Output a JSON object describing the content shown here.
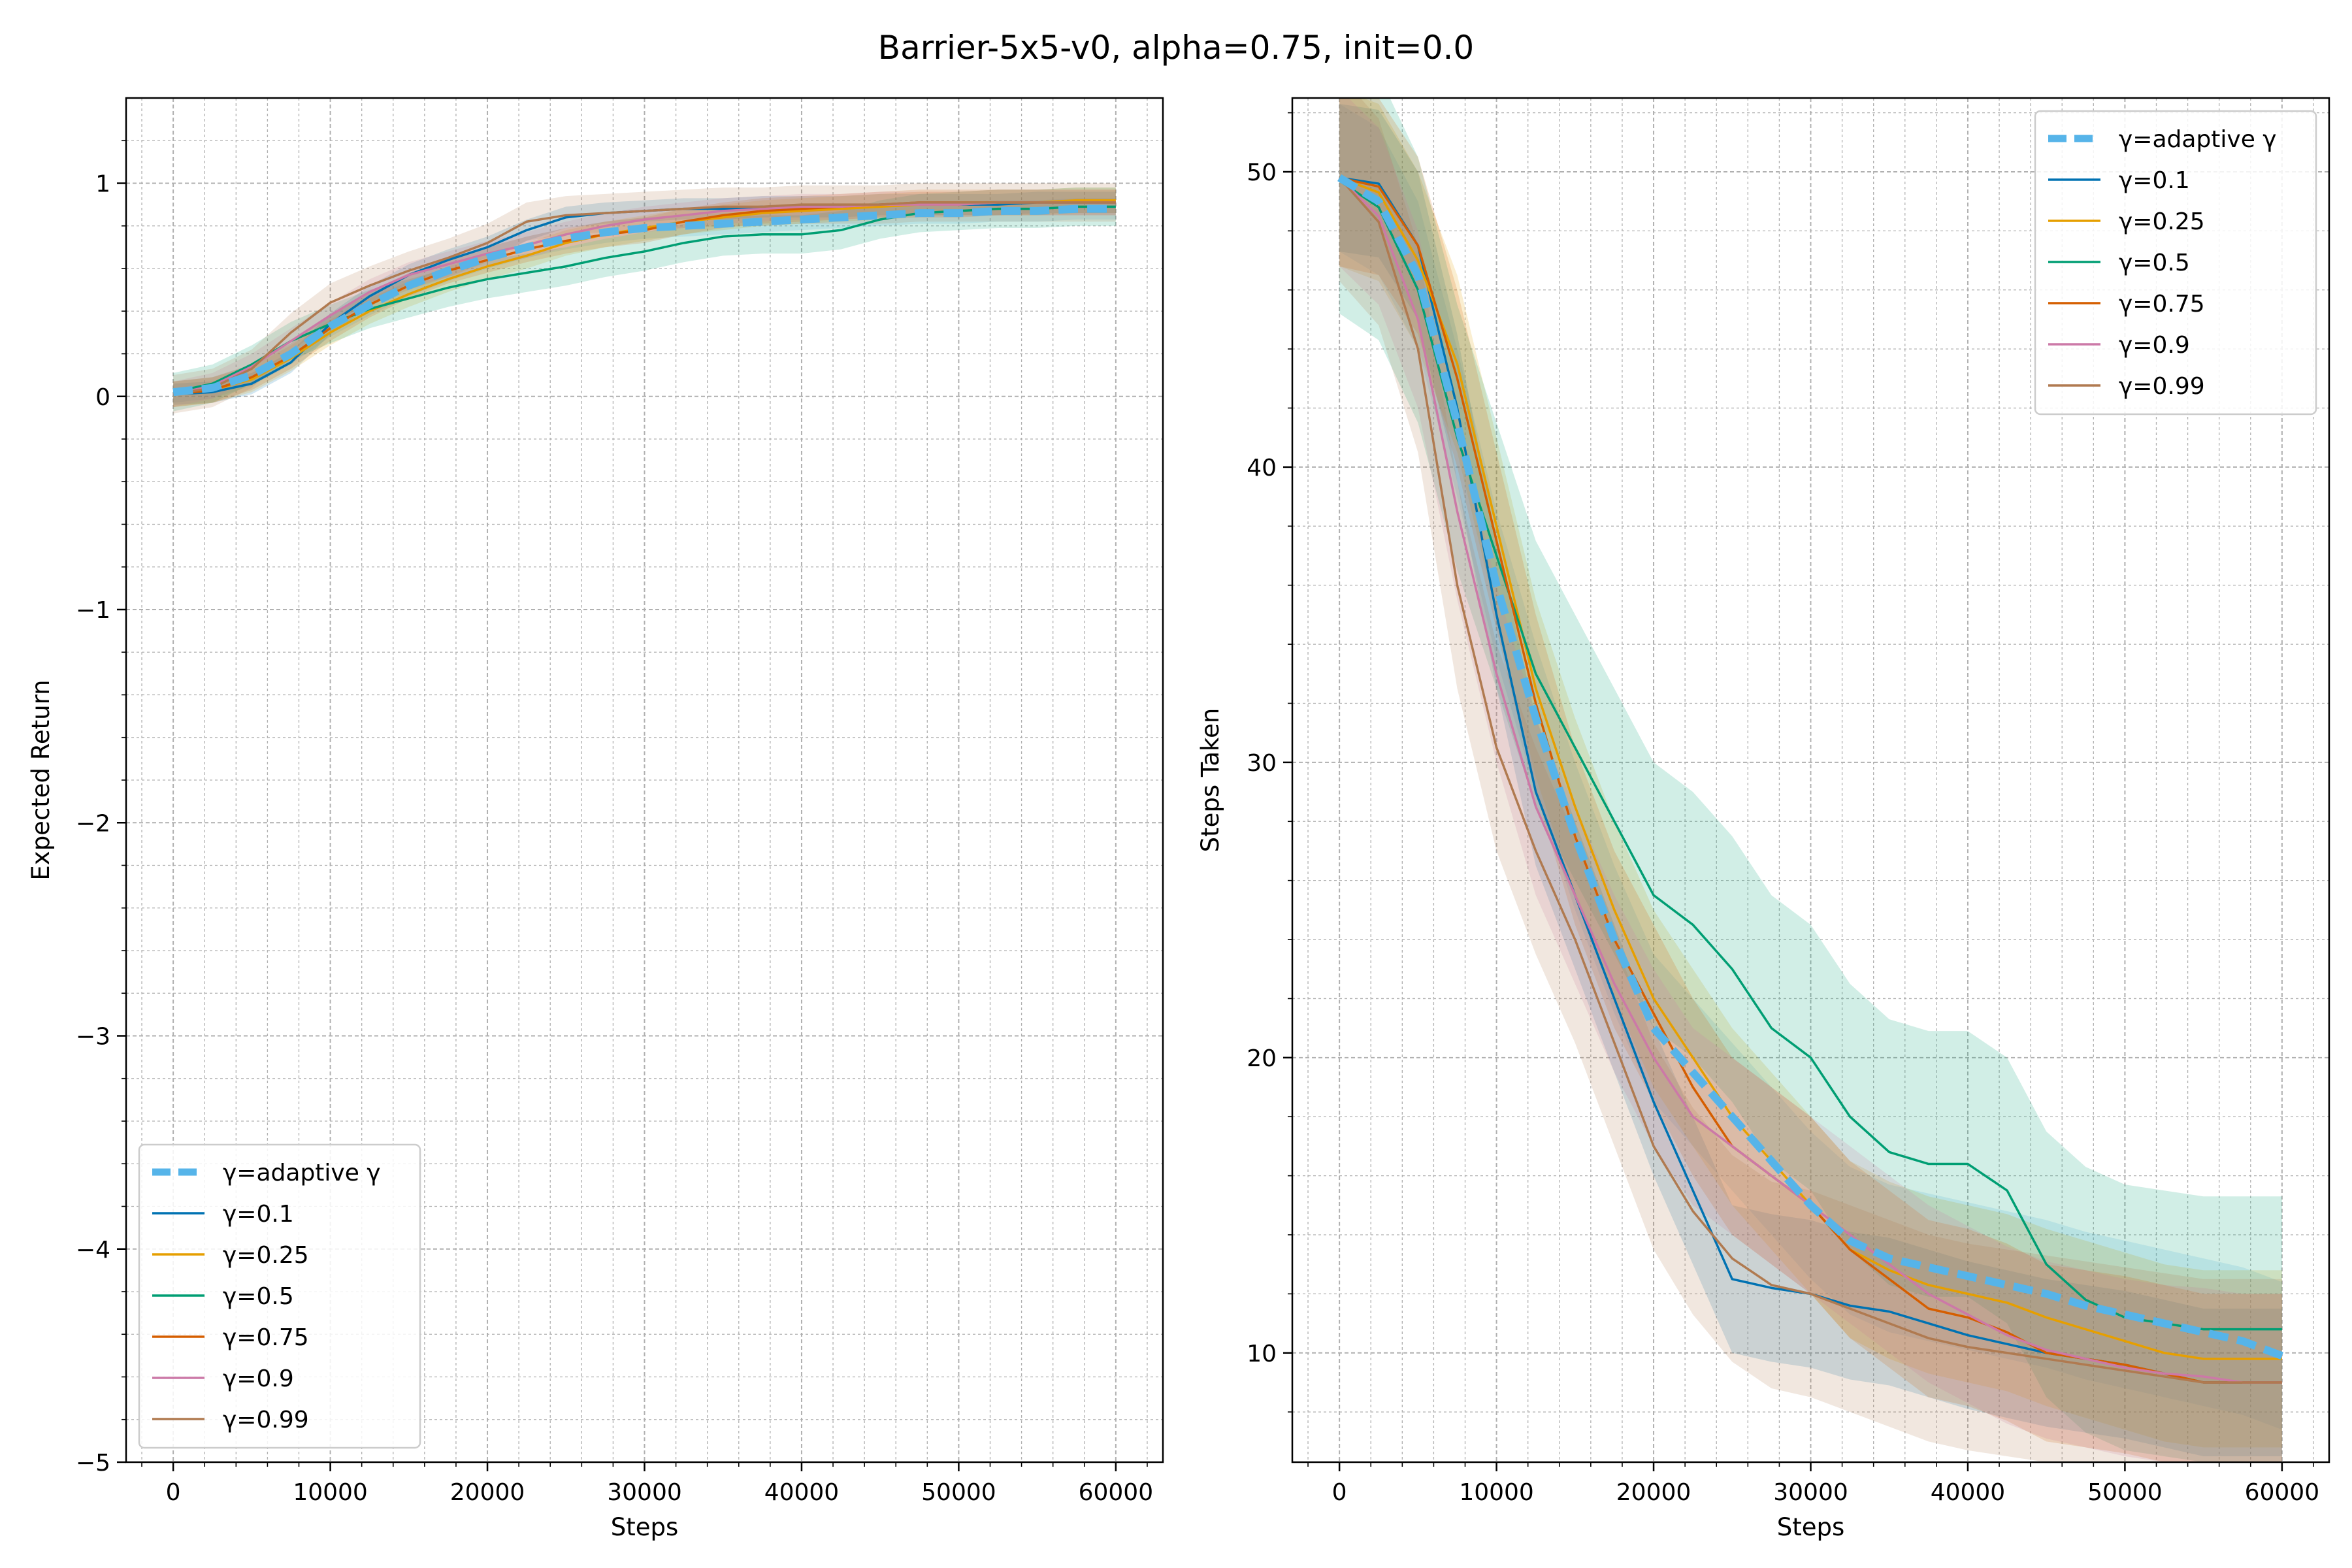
{
  "figure_title": "Barrier-5x5-v0, alpha=0.75, init=0.0",
  "colors": {
    "adaptive": "#56b4e9",
    "g01": "#0072b2",
    "g025": "#e69f00",
    "g05": "#009e73",
    "g075": "#d55e00",
    "g09": "#cc79a7",
    "g099": "#b07a50"
  },
  "chart_data": [
    {
      "type": "line",
      "xlabel": "Steps",
      "ylabel": "Expected Return",
      "xlim": [
        -3000,
        63000
      ],
      "ylim": [
        -5,
        1.4
      ],
      "xticks": [
        0,
        10000,
        20000,
        30000,
        40000,
        50000,
        60000
      ],
      "yticks": [
        -5,
        -4,
        -3,
        -2,
        -1,
        0,
        1
      ],
      "ytick_labels": [
        "−5",
        "−4",
        "−3",
        "−2",
        "−1",
        "0",
        "1"
      ],
      "grid": true,
      "legend_position": "lower-left",
      "x": [
        0,
        2500,
        5000,
        7500,
        10000,
        12500,
        15000,
        17500,
        20000,
        22500,
        25000,
        27500,
        30000,
        32500,
        35000,
        37500,
        40000,
        42500,
        45000,
        47500,
        50000,
        52500,
        55000,
        57500,
        60000
      ],
      "series": [
        {
          "name": "γ=adaptive γ",
          "key": "adaptive",
          "dashed": true,
          "width": 12,
          "values": [
            0.02,
            0.04,
            0.1,
            0.2,
            0.33,
            0.43,
            0.52,
            0.59,
            0.65,
            0.7,
            0.74,
            0.77,
            0.79,
            0.8,
            0.81,
            0.82,
            0.83,
            0.84,
            0.85,
            0.86,
            0.86,
            0.87,
            0.87,
            0.88,
            0.88
          ],
          "band": 0.05
        },
        {
          "name": "γ=0.1",
          "key": "g01",
          "width": 3.5,
          "values": [
            0.01,
            0.02,
            0.06,
            0.16,
            0.34,
            0.47,
            0.57,
            0.64,
            0.7,
            0.78,
            0.84,
            0.86,
            0.87,
            0.88,
            0.88,
            0.89,
            0.89,
            0.89,
            0.9,
            0.9,
            0.9,
            0.9,
            0.91,
            0.91,
            0.91
          ],
          "band": 0.05
        },
        {
          "name": "γ=0.25",
          "key": "g025",
          "width": 3.5,
          "values": [
            0.01,
            0.03,
            0.08,
            0.18,
            0.3,
            0.4,
            0.48,
            0.55,
            0.61,
            0.66,
            0.72,
            0.76,
            0.79,
            0.82,
            0.84,
            0.86,
            0.87,
            0.88,
            0.89,
            0.9,
            0.9,
            0.91,
            0.91,
            0.92,
            0.92
          ],
          "band": 0.06
        },
        {
          "name": "γ=0.5",
          "key": "g05",
          "width": 3.5,
          "values": [
            0.02,
            0.06,
            0.15,
            0.26,
            0.34,
            0.41,
            0.46,
            0.51,
            0.55,
            0.58,
            0.61,
            0.65,
            0.68,
            0.72,
            0.75,
            0.76,
            0.76,
            0.78,
            0.83,
            0.86,
            0.87,
            0.88,
            0.88,
            0.89,
            0.89
          ],
          "band": 0.09
        },
        {
          "name": "γ=0.75",
          "key": "g075",
          "width": 3.5,
          "values": [
            0.01,
            0.03,
            0.09,
            0.19,
            0.32,
            0.43,
            0.52,
            0.59,
            0.64,
            0.69,
            0.73,
            0.76,
            0.78,
            0.82,
            0.85,
            0.87,
            0.88,
            0.89,
            0.9,
            0.91,
            0.91,
            0.91,
            0.91,
            0.91,
            0.91
          ],
          "band": 0.06
        },
        {
          "name": "γ=0.9",
          "key": "g09",
          "width": 3.5,
          "values": [
            0.01,
            0.05,
            0.14,
            0.26,
            0.38,
            0.49,
            0.57,
            0.62,
            0.67,
            0.71,
            0.76,
            0.8,
            0.83,
            0.85,
            0.87,
            0.88,
            0.89,
            0.89,
            0.9,
            0.9,
            0.9,
            0.91,
            0.91,
            0.91,
            0.91
          ],
          "band": 0.06
        },
        {
          "name": "γ=0.99",
          "key": "g099",
          "width": 3.5,
          "values": [
            0.01,
            0.04,
            0.13,
            0.3,
            0.44,
            0.52,
            0.59,
            0.65,
            0.72,
            0.82,
            0.85,
            0.86,
            0.87,
            0.88,
            0.89,
            0.89,
            0.9,
            0.9,
            0.9,
            0.91,
            0.91,
            0.91,
            0.91,
            0.91,
            0.91
          ],
          "band": 0.09
        }
      ]
    },
    {
      "type": "line",
      "xlabel": "Steps",
      "ylabel": "Steps Taken",
      "xlim": [
        -3000,
        63000
      ],
      "ylim": [
        6.3,
        52.5
      ],
      "xticks": [
        0,
        10000,
        20000,
        30000,
        40000,
        50000,
        60000
      ],
      "yticks": [
        10,
        20,
        30,
        40,
        50
      ],
      "ytick_labels": [
        "10",
        "20",
        "30",
        "40",
        "50"
      ],
      "grid": true,
      "legend_position": "top-right",
      "x": [
        0,
        2500,
        5000,
        7500,
        10000,
        12500,
        15000,
        17500,
        20000,
        22500,
        25000,
        27500,
        30000,
        32500,
        35000,
        37500,
        40000,
        42500,
        45000,
        47500,
        50000,
        52500,
        55000,
        57500,
        60000
      ],
      "series": [
        {
          "name": "γ=adaptive γ",
          "key": "adaptive",
          "dashed": true,
          "width": 12,
          "values": [
            49.8,
            49.0,
            46.5,
            41.5,
            36.0,
            31.5,
            27.5,
            24.0,
            21.0,
            19.5,
            18.0,
            16.5,
            15.0,
            13.8,
            13.2,
            12.9,
            12.6,
            12.3,
            12.0,
            11.6,
            11.3,
            11.0,
            10.7,
            10.4,
            9.9
          ],
          "band": 2.5
        },
        {
          "name": "γ=0.1",
          "key": "g01",
          "width": 3.5,
          "values": [
            49.8,
            49.6,
            47.5,
            42.0,
            35.0,
            29.0,
            25.5,
            22.0,
            18.5,
            15.5,
            12.5,
            12.2,
            12.0,
            11.6,
            11.4,
            11.0,
            10.6,
            10.3,
            10.0,
            9.8,
            9.6,
            9.3,
            9.0,
            9.0,
            9.0
          ],
          "band": 2.5
        },
        {
          "name": "γ=0.25",
          "key": "g025",
          "width": 3.5,
          "values": [
            49.8,
            49.3,
            47.0,
            43.5,
            38.0,
            32.5,
            28.5,
            25.0,
            22.0,
            20.0,
            18.0,
            16.5,
            15.0,
            13.5,
            12.8,
            12.3,
            12.0,
            11.7,
            11.2,
            10.8,
            10.4,
            10.0,
            9.8,
            9.8,
            9.8
          ],
          "band": 3.0
        },
        {
          "name": "γ=0.5",
          "key": "g05",
          "width": 3.5,
          "values": [
            49.7,
            48.8,
            46.0,
            41.0,
            37.0,
            33.0,
            30.5,
            28.0,
            25.5,
            24.5,
            23.0,
            21.0,
            20.0,
            18.0,
            16.8,
            16.4,
            16.4,
            15.5,
            13.0,
            11.8,
            11.2,
            11.0,
            10.8,
            10.8,
            10.8
          ],
          "band": 4.5
        },
        {
          "name": "γ=0.75",
          "key": "g075",
          "width": 3.5,
          "values": [
            49.8,
            49.5,
            47.5,
            43.0,
            37.5,
            32.0,
            27.5,
            24.0,
            21.5,
            19.0,
            17.0,
            16.0,
            15.0,
            13.5,
            12.5,
            11.5,
            11.2,
            10.7,
            10.0,
            9.8,
            9.6,
            9.3,
            9.0,
            9.0,
            9.0
          ],
          "band": 3.0
        },
        {
          "name": "γ=0.9",
          "key": "g09",
          "width": 3.5,
          "values": [
            49.8,
            48.5,
            45.0,
            38.5,
            33.0,
            28.5,
            25.5,
            22.5,
            20.0,
            18.0,
            17.0,
            16.0,
            15.0,
            14.0,
            13.0,
            12.0,
            11.3,
            10.6,
            10.1,
            9.8,
            9.5,
            9.3,
            9.2,
            9.0,
            9.0
          ],
          "band": 3.0
        },
        {
          "name": "γ=0.99",
          "key": "g099",
          "width": 3.5,
          "values": [
            49.8,
            48.3,
            44.0,
            36.0,
            30.5,
            27.0,
            24.0,
            20.5,
            17.0,
            14.8,
            13.2,
            12.3,
            12.0,
            11.5,
            11.0,
            10.5,
            10.2,
            10.0,
            9.8,
            9.6,
            9.4,
            9.2,
            9.0,
            9.0,
            9.0
          ],
          "band": 3.5
        }
      ]
    }
  ]
}
